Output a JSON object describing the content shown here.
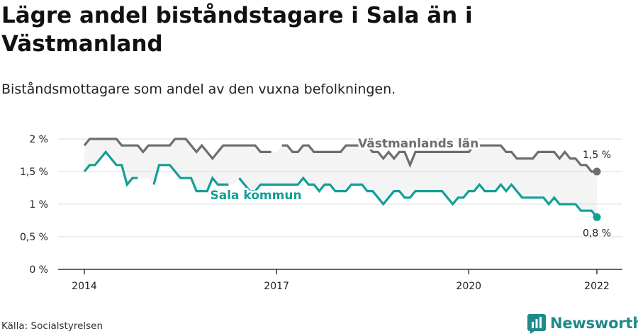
{
  "header": {
    "title": "Lägre andel biståndstagare i Sala än i Västmanland",
    "subtitle": "Biståndsmottagare som andel av den vuxna befolkningen."
  },
  "footer": {
    "source": "Källa: Socialstyrelsen",
    "brand": "Newsworthy"
  },
  "colors": {
    "vastmanland": "#6d6d72",
    "sala": "#12a096",
    "band": "#f4f4f4",
    "grid": "#dddddd",
    "brand": "#1e8a8a"
  },
  "icons": {
    "brand_logo": "bar-chart-logo-icon"
  },
  "chart_data": {
    "type": "line",
    "title": "Lägre andel biståndstagare i Sala än i Västmanland",
    "subtitle": "Biståndsmottagare som andel av den vuxna befolkningen.",
    "unit": "%",
    "ylim": [
      0,
      2
    ],
    "yticks": [
      0,
      0.5,
      1,
      1.5,
      2
    ],
    "ytick_labels": [
      "0 %",
      "0,5 %",
      "1 %",
      "1,5 %",
      "2 %"
    ],
    "xlim": [
      "2014-01",
      "2022-01"
    ],
    "xticks": [
      "2014-01",
      "2017-01",
      "2020-01",
      "2022-01"
    ],
    "xtick_labels": [
      "2014",
      "2017",
      "2020",
      "2022"
    ],
    "grid": true,
    "legend": "inline labels",
    "series": [
      {
        "name": "Västmanlands län",
        "end_label": "1,5 %",
        "points": [
          [
            "2014-01",
            1.9
          ],
          [
            "2014-02",
            2.0
          ],
          [
            "2014-03",
            2.0
          ],
          [
            "2014-04",
            2.0
          ],
          [
            "2014-05",
            2.0
          ],
          [
            "2014-06",
            2.0
          ],
          [
            "2014-07",
            2.0
          ],
          [
            "2014-08",
            1.9
          ],
          [
            "2014-09",
            1.9
          ],
          [
            "2014-10",
            1.9
          ],
          [
            "2014-11",
            1.9
          ],
          [
            "2014-12",
            1.8
          ],
          [
            "2015-01",
            1.9
          ],
          [
            "2015-02",
            1.9
          ],
          [
            "2015-03",
            1.9
          ],
          [
            "2015-04",
            1.9
          ],
          [
            "2015-05",
            1.9
          ],
          [
            "2015-06",
            2.0
          ],
          [
            "2015-07",
            2.0
          ],
          [
            "2015-08",
            2.0
          ],
          [
            "2015-09",
            1.9
          ],
          [
            "2015-10",
            1.8
          ],
          [
            "2015-11",
            1.9
          ],
          [
            "2015-12",
            1.8
          ],
          [
            "2016-01",
            1.7
          ],
          [
            "2016-02",
            1.8
          ],
          [
            "2016-03",
            1.9
          ],
          [
            "2016-04",
            1.9
          ],
          [
            "2016-05",
            1.9
          ],
          [
            "2016-06",
            1.9
          ],
          [
            "2016-07",
            1.9
          ],
          [
            "2016-08",
            1.9
          ],
          [
            "2016-09",
            1.9
          ],
          [
            "2016-10",
            1.8
          ],
          [
            "2016-11",
            1.8
          ],
          [
            "2016-12",
            1.8
          ],
          [
            "2017-01",
            null
          ],
          [
            "2017-02",
            1.9
          ],
          [
            "2017-03",
            1.9
          ],
          [
            "2017-04",
            1.8
          ],
          [
            "2017-05",
            1.8
          ],
          [
            "2017-06",
            1.9
          ],
          [
            "2017-07",
            1.9
          ],
          [
            "2017-08",
            1.8
          ],
          [
            "2017-09",
            1.8
          ],
          [
            "2017-10",
            1.8
          ],
          [
            "2017-11",
            1.8
          ],
          [
            "2017-12",
            1.8
          ],
          [
            "2018-01",
            1.8
          ],
          [
            "2018-02",
            1.9
          ],
          [
            "2018-03",
            1.9
          ],
          [
            "2018-04",
            1.9
          ],
          [
            "2018-05",
            1.9
          ],
          [
            "2018-06",
            1.9
          ],
          [
            "2018-07",
            1.8
          ],
          [
            "2018-08",
            1.8
          ],
          [
            "2018-09",
            1.7
          ],
          [
            "2018-10",
            1.8
          ],
          [
            "2018-11",
            1.7
          ],
          [
            "2018-12",
            1.8
          ],
          [
            "2019-01",
            1.8
          ],
          [
            "2019-02",
            1.6
          ],
          [
            "2019-03",
            1.8
          ],
          [
            "2019-04",
            1.8
          ],
          [
            "2019-05",
            1.8
          ],
          [
            "2019-06",
            1.8
          ],
          [
            "2019-07",
            1.8
          ],
          [
            "2019-08",
            1.8
          ],
          [
            "2019-09",
            1.8
          ],
          [
            "2019-10",
            1.8
          ],
          [
            "2019-11",
            1.8
          ],
          [
            "2019-12",
            1.8
          ],
          [
            "2020-01",
            1.8
          ],
          [
            "2020-02",
            1.9
          ],
          [
            "2020-03",
            1.9
          ],
          [
            "2020-04",
            1.9
          ],
          [
            "2020-05",
            1.9
          ],
          [
            "2020-06",
            1.9
          ],
          [
            "2020-07",
            1.9
          ],
          [
            "2020-08",
            1.8
          ],
          [
            "2020-09",
            1.8
          ],
          [
            "2020-10",
            1.7
          ],
          [
            "2020-11",
            1.7
          ],
          [
            "2020-12",
            1.7
          ],
          [
            "2021-01",
            1.7
          ],
          [
            "2021-02",
            1.8
          ],
          [
            "2021-03",
            1.8
          ],
          [
            "2021-04",
            1.8
          ],
          [
            "2021-05",
            1.8
          ],
          [
            "2021-06",
            1.7
          ],
          [
            "2021-07",
            1.8
          ],
          [
            "2021-08",
            1.7
          ],
          [
            "2021-09",
            1.7
          ],
          [
            "2021-10",
            1.6
          ],
          [
            "2021-11",
            1.6
          ],
          [
            "2021-12",
            1.5
          ],
          [
            "2022-01",
            1.5
          ]
        ]
      },
      {
        "name": "Sala kommun",
        "end_label": "0,8 %",
        "points": [
          [
            "2014-01",
            1.5
          ],
          [
            "2014-02",
            1.6
          ],
          [
            "2014-03",
            1.6
          ],
          [
            "2014-04",
            1.7
          ],
          [
            "2014-05",
            1.8
          ],
          [
            "2014-06",
            1.7
          ],
          [
            "2014-07",
            1.6
          ],
          [
            "2014-08",
            1.6
          ],
          [
            "2014-09",
            1.3
          ],
          [
            "2014-10",
            1.4
          ],
          [
            "2014-11",
            1.4
          ],
          [
            "2014-12",
            null
          ],
          [
            "2015-01",
            null
          ],
          [
            "2015-02",
            1.3
          ],
          [
            "2015-03",
            1.6
          ],
          [
            "2015-04",
            1.6
          ],
          [
            "2015-05",
            1.6
          ],
          [
            "2015-06",
            1.5
          ],
          [
            "2015-07",
            1.4
          ],
          [
            "2015-08",
            1.4
          ],
          [
            "2015-09",
            1.4
          ],
          [
            "2015-10",
            1.2
          ],
          [
            "2015-11",
            1.2
          ],
          [
            "2015-12",
            1.2
          ],
          [
            "2016-01",
            1.4
          ],
          [
            "2016-02",
            1.3
          ],
          [
            "2016-03",
            1.3
          ],
          [
            "2016-04",
            1.3
          ],
          [
            "2016-05",
            null
          ],
          [
            "2016-06",
            1.4
          ],
          [
            "2016-07",
            1.3
          ],
          [
            "2016-08",
            1.2
          ],
          [
            "2016-09",
            1.2
          ],
          [
            "2016-10",
            1.3
          ],
          [
            "2016-11",
            1.3
          ],
          [
            "2016-12",
            1.3
          ],
          [
            "2017-01",
            1.3
          ],
          [
            "2017-02",
            1.3
          ],
          [
            "2017-03",
            1.3
          ],
          [
            "2017-04",
            1.3
          ],
          [
            "2017-05",
            1.3
          ],
          [
            "2017-06",
            1.4
          ],
          [
            "2017-07",
            1.3
          ],
          [
            "2017-08",
            1.3
          ],
          [
            "2017-09",
            1.2
          ],
          [
            "2017-10",
            1.3
          ],
          [
            "2017-11",
            1.3
          ],
          [
            "2017-12",
            1.2
          ],
          [
            "2018-01",
            1.2
          ],
          [
            "2018-02",
            1.2
          ],
          [
            "2018-03",
            1.3
          ],
          [
            "2018-04",
            1.3
          ],
          [
            "2018-05",
            1.3
          ],
          [
            "2018-06",
            1.2
          ],
          [
            "2018-07",
            1.2
          ],
          [
            "2018-08",
            1.1
          ],
          [
            "2018-09",
            1.0
          ],
          [
            "2018-10",
            1.1
          ],
          [
            "2018-11",
            1.2
          ],
          [
            "2018-12",
            1.2
          ],
          [
            "2019-01",
            1.1
          ],
          [
            "2019-02",
            1.1
          ],
          [
            "2019-03",
            1.2
          ],
          [
            "2019-04",
            1.2
          ],
          [
            "2019-05",
            1.2
          ],
          [
            "2019-06",
            1.2
          ],
          [
            "2019-07",
            1.2
          ],
          [
            "2019-08",
            1.2
          ],
          [
            "2019-09",
            1.1
          ],
          [
            "2019-10",
            1.0
          ],
          [
            "2019-11",
            1.1
          ],
          [
            "2019-12",
            1.1
          ],
          [
            "2020-01",
            1.2
          ],
          [
            "2020-02",
            1.2
          ],
          [
            "2020-03",
            1.3
          ],
          [
            "2020-04",
            1.2
          ],
          [
            "2020-05",
            1.2
          ],
          [
            "2020-06",
            1.2
          ],
          [
            "2020-07",
            1.3
          ],
          [
            "2020-08",
            1.2
          ],
          [
            "2020-09",
            1.3
          ],
          [
            "2020-10",
            1.2
          ],
          [
            "2020-11",
            1.1
          ],
          [
            "2020-12",
            1.1
          ],
          [
            "2021-01",
            1.1
          ],
          [
            "2021-02",
            1.1
          ],
          [
            "2021-03",
            1.1
          ],
          [
            "2021-04",
            1.0
          ],
          [
            "2021-05",
            1.1
          ],
          [
            "2021-06",
            1.0
          ],
          [
            "2021-07",
            1.0
          ],
          [
            "2021-08",
            1.0
          ],
          [
            "2021-09",
            1.0
          ],
          [
            "2021-10",
            0.9
          ],
          [
            "2021-11",
            0.9
          ],
          [
            "2021-12",
            0.9
          ],
          [
            "2022-01",
            0.8
          ]
        ]
      }
    ]
  }
}
